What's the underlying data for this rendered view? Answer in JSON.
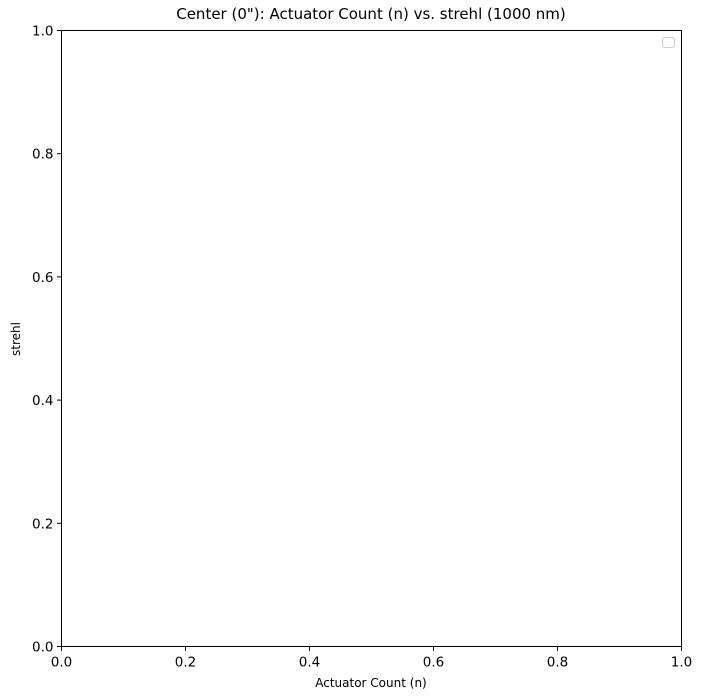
{
  "chart_data": {
    "type": "line",
    "title": "Center (0\"): Actuator Count (n) vs. strehl (1000 nm)",
    "xlabel": "Actuator Count (n)",
    "ylabel": "strehl",
    "xlim": [
      0.0,
      1.0
    ],
    "ylim": [
      0.0,
      1.0
    ],
    "xticks": [
      "0.0",
      "0.2",
      "0.4",
      "0.6",
      "0.8",
      "1.0"
    ],
    "yticks": [
      "0.0",
      "0.2",
      "0.4",
      "0.6",
      "0.8",
      "1.0"
    ],
    "series": [],
    "grid": false,
    "legend": {
      "placement": "top-right",
      "entries": []
    }
  }
}
